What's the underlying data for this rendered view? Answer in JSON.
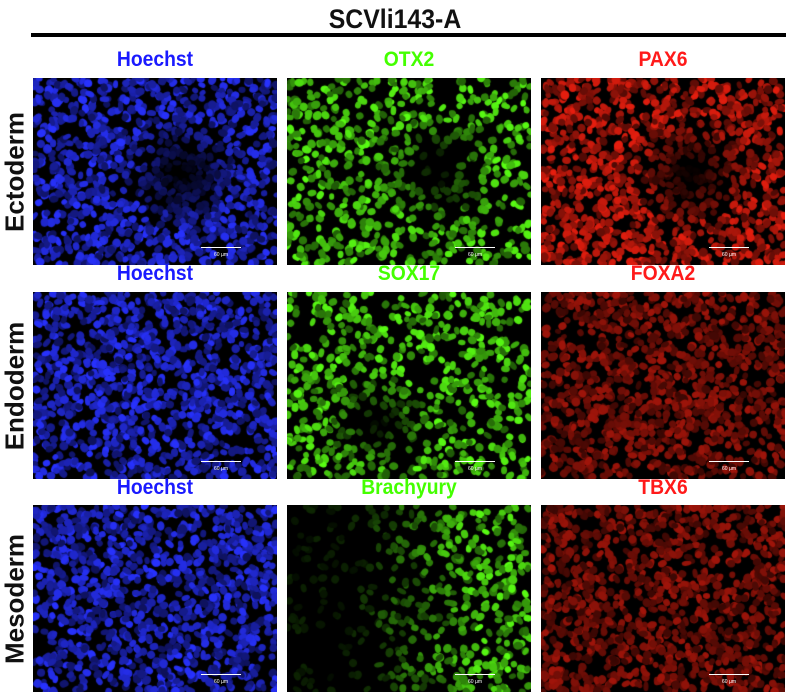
{
  "title": "SCVli143-A",
  "scale_bar": "60 µm",
  "colors": {
    "Hoechst": "#1a1aff",
    "green": "#33ff00",
    "red": "#ff1a1a"
  },
  "rows": [
    {
      "label": "Ectoderm",
      "panels": [
        {
          "marker": "Hoechst",
          "channel": "blue"
        },
        {
          "marker": "OTX2",
          "channel": "green"
        },
        {
          "marker": "PAX6",
          "channel": "red"
        }
      ]
    },
    {
      "label": "Endoderm",
      "panels": [
        {
          "marker": "Hoechst",
          "channel": "blue"
        },
        {
          "marker": "SOX17",
          "channel": "green"
        },
        {
          "marker": "FOXA2",
          "channel": "red"
        }
      ]
    },
    {
      "label": "Mesoderm",
      "panels": [
        {
          "marker": "Hoechst",
          "channel": "blue"
        },
        {
          "marker": "Brachyury",
          "channel": "green"
        },
        {
          "marker": "TBX6",
          "channel": "red"
        }
      ]
    }
  ]
}
